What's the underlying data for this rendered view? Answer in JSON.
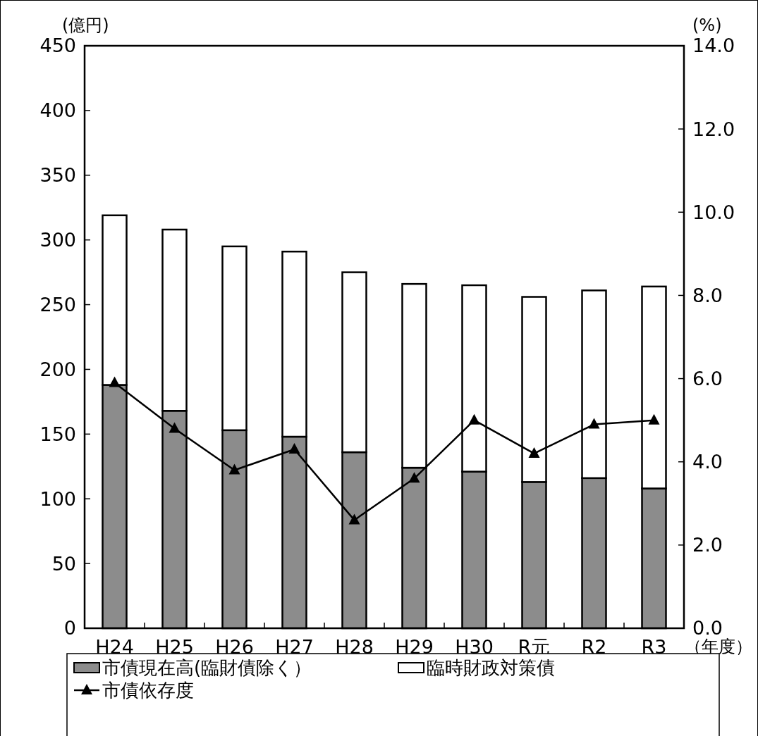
{
  "chart_data": {
    "type": "bar",
    "stacked": true,
    "categories": [
      "H24",
      "H25",
      "H26",
      "H27",
      "H28",
      "H29",
      "H30",
      "R元",
      "R2",
      "R3"
    ],
    "series": [
      {
        "name": "市債現在高(臨財債除く）",
        "color": "#8c8c8c",
        "values": [
          188,
          168,
          153,
          148,
          136,
          124,
          121,
          113,
          116,
          108
        ]
      },
      {
        "name": "臨時財政対策債",
        "color": "#ffffff",
        "values": [
          131,
          140,
          142,
          143,
          139,
          142,
          144,
          143,
          145,
          156
        ]
      },
      {
        "name": "市債依存度",
        "type": "line",
        "axis": "y2",
        "color": "#000000",
        "marker": "triangle",
        "values": [
          5.9,
          4.8,
          3.8,
          4.3,
          2.6,
          3.6,
          5.0,
          4.2,
          4.9,
          5.0
        ]
      }
    ],
    "ylabel": "(億円)",
    "y2label": "(%)",
    "xlabel": "（年度）",
    "ylim": [
      0,
      450
    ],
    "yticks": [
      0,
      50,
      100,
      150,
      200,
      250,
      300,
      350,
      400,
      450
    ],
    "y2lim": [
      0,
      14
    ],
    "y2ticks": [
      {
        "value": 0,
        "label": "0.0"
      },
      {
        "value": 2,
        "label": "2.0"
      },
      {
        "value": 4,
        "label": "4.0"
      },
      {
        "value": 6,
        "label": "6.0"
      },
      {
        "value": 8,
        "label": "8.0"
      },
      {
        "value": 10,
        "label": "10.0"
      },
      {
        "value": 12,
        "label": "12.0"
      },
      {
        "value": 14,
        "label": "14.0"
      }
    ],
    "legend": "bottom",
    "grid": false
  }
}
